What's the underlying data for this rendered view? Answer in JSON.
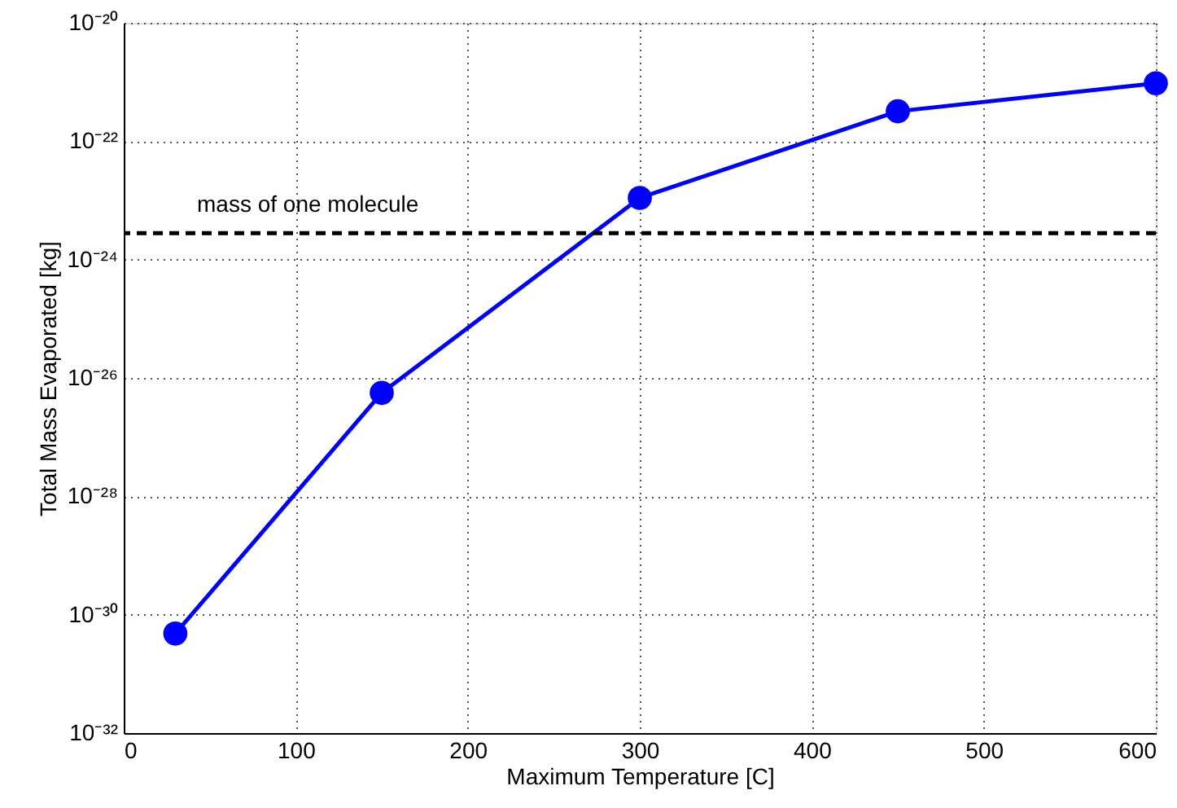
{
  "chart_data": {
    "type": "line",
    "xlabel": "Maximum Temperature [C]",
    "ylabel": "Total Mass Evaporated [kg]",
    "x": [
      30,
      150,
      300,
      450,
      600
    ],
    "series": [
      {
        "color": "#0000ff",
        "values": [
          4.8e-31,
          5.6e-27,
          1.1e-23,
          3.2e-22,
          9.5e-22
        ]
      }
    ],
    "log": "y",
    "xlim": [
      0,
      600
    ],
    "xticks": [
      0,
      100,
      200,
      300,
      400,
      500,
      600
    ],
    "ylim": [
      1e-32,
      1e-20
    ],
    "yticks": [
      {
        "value": 1e-32,
        "label": "10⁻³²"
      },
      {
        "value": 1e-30,
        "label": "10⁻³⁰"
      },
      {
        "value": 1e-28,
        "label": "10⁻²⁸"
      },
      {
        "value": 1e-26,
        "label": "10⁻²⁶"
      },
      {
        "value": 1e-24,
        "label": "10⁻²⁴"
      },
      {
        "value": 1e-22,
        "label": "10⁻²²"
      },
      {
        "value": 1e-20,
        "label": "10⁻²⁰"
      }
    ],
    "ref_lines": [
      {
        "axis": "y",
        "value": 2.8e-24,
        "label": "mass of one molecule",
        "color": "#000000",
        "line_style": "dashed"
      }
    ],
    "grid": true,
    "marker": "circle",
    "line_style": "solid"
  }
}
